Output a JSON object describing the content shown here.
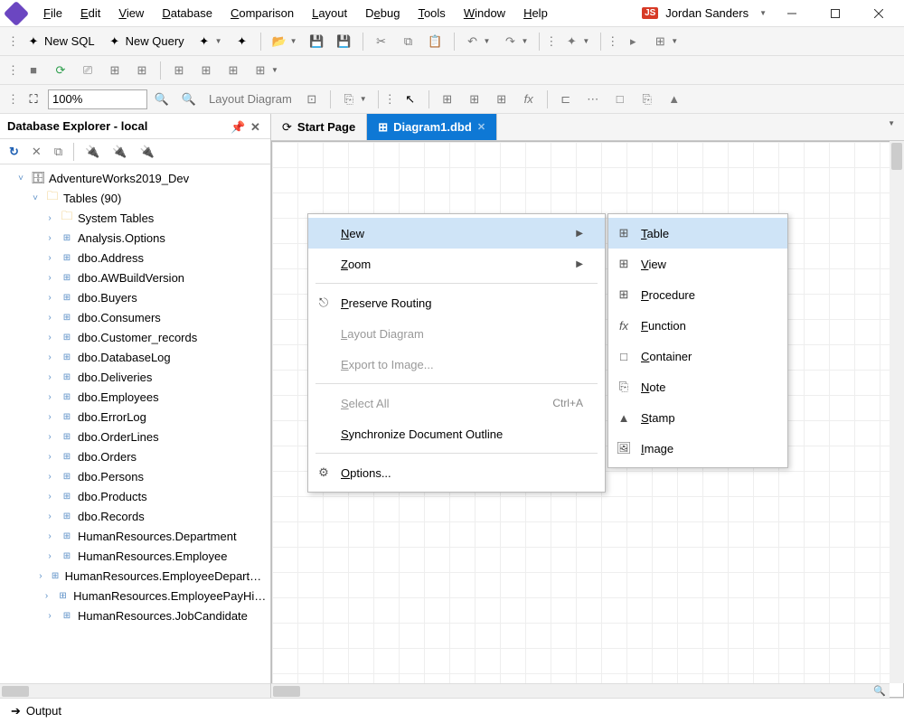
{
  "titlebar": {
    "menus": [
      "File",
      "Edit",
      "View",
      "Database",
      "Comparison",
      "Layout",
      "Debug",
      "Tools",
      "Window",
      "Help"
    ],
    "user_badge": "JS",
    "user_name": "Jordan Sanders"
  },
  "toolbar1": {
    "new_sql": "New SQL",
    "new_query": "New Query"
  },
  "toolbar3": {
    "zoom": "100%",
    "layout_diagram": "Layout Diagram"
  },
  "explorer": {
    "title": "Database Explorer - local",
    "root": "AdventureWorks2019_Dev",
    "tables_label": "Tables (90)",
    "nodes": [
      {
        "label": "System Tables",
        "icon": "folder"
      },
      {
        "label": "Analysis.Options",
        "icon": "table"
      },
      {
        "label": "dbo.Address",
        "icon": "table"
      },
      {
        "label": "dbo.AWBuildVersion",
        "icon": "table"
      },
      {
        "label": "dbo.Buyers",
        "icon": "table"
      },
      {
        "label": "dbo.Consumers",
        "icon": "table"
      },
      {
        "label": "dbo.Customer_records",
        "icon": "table"
      },
      {
        "label": "dbo.DatabaseLog",
        "icon": "table"
      },
      {
        "label": "dbo.Deliveries",
        "icon": "table"
      },
      {
        "label": "dbo.Employees",
        "icon": "table"
      },
      {
        "label": "dbo.ErrorLog",
        "icon": "table"
      },
      {
        "label": "dbo.OrderLines",
        "icon": "table"
      },
      {
        "label": "dbo.Orders",
        "icon": "table"
      },
      {
        "label": "dbo.Persons",
        "icon": "table"
      },
      {
        "label": "dbo.Products",
        "icon": "table"
      },
      {
        "label": "dbo.Records",
        "icon": "table"
      },
      {
        "label": "HumanResources.Department",
        "icon": "table"
      },
      {
        "label": "HumanResources.Employee",
        "icon": "table"
      },
      {
        "label": "HumanResources.EmployeeDepartmentHistory",
        "icon": "table"
      },
      {
        "label": "HumanResources.EmployeePayHistory",
        "icon": "table"
      },
      {
        "label": "HumanResources.JobCandidate",
        "icon": "table"
      }
    ]
  },
  "tabs": {
    "start_page": "Start Page",
    "diagram": "Diagram1.dbd"
  },
  "context_menu": {
    "items": [
      {
        "label": "New",
        "sub": true,
        "highlight": true
      },
      {
        "label": "Zoom",
        "sub": true
      },
      {
        "sep": true
      },
      {
        "label": "Preserve Routing",
        "icon": "route"
      },
      {
        "label": "Layout Diagram",
        "disabled": true
      },
      {
        "label": "Export to Image...",
        "disabled": true
      },
      {
        "sep": true
      },
      {
        "label": "Select All",
        "disabled": true,
        "shortcut": "Ctrl+A"
      },
      {
        "label": "Synchronize Document Outline"
      },
      {
        "sep": true
      },
      {
        "label": "Options...",
        "icon": "gear"
      }
    ],
    "submenu": [
      {
        "label": "Table",
        "icon": "table",
        "highlight": true
      },
      {
        "label": "View",
        "icon": "view"
      },
      {
        "label": "Procedure",
        "icon": "proc"
      },
      {
        "label": "Function",
        "icon": "fx"
      },
      {
        "label": "Container",
        "icon": "container"
      },
      {
        "label": "Note",
        "icon": "note"
      },
      {
        "label": "Stamp",
        "icon": "stamp"
      },
      {
        "label": "Image",
        "icon": "image"
      }
    ]
  },
  "bottom": {
    "output": "Output"
  },
  "colors": {
    "accent": "#0e78d5",
    "menu_highlight": "#cfe4f7"
  }
}
